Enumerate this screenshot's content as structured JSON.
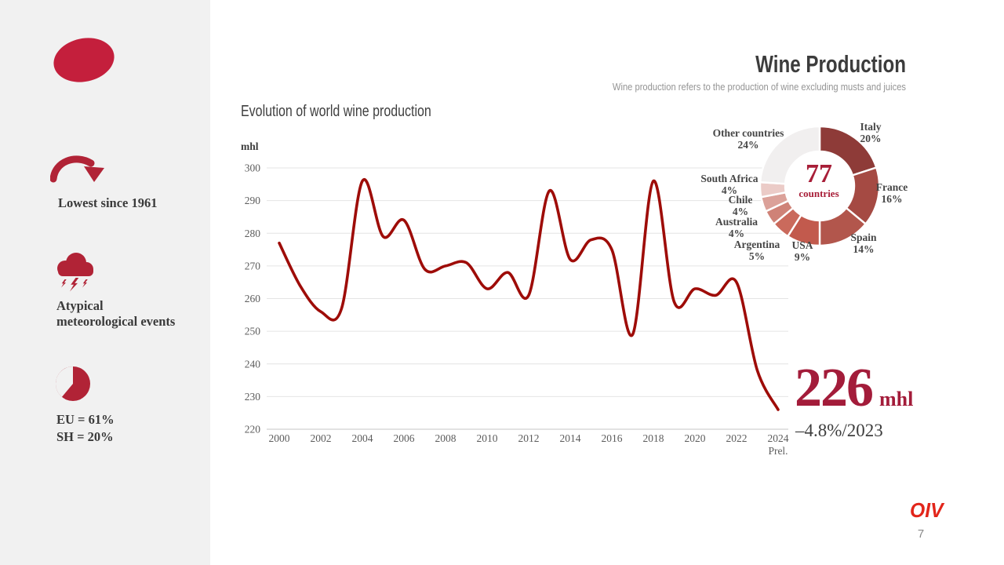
{
  "header": {
    "title": "Wine Production",
    "subtitle": "Wine production refers to the production of wine excluding musts and juices"
  },
  "sidebar": {
    "items": [
      {
        "icon": "curved-down-arrow-icon",
        "lines": [
          "Lowest since 1961"
        ]
      },
      {
        "icon": "storm-cloud-lightning-icon",
        "lines": [
          "Atypical",
          "meteorological events"
        ]
      },
      {
        "icon": "pie-chart-icon",
        "lines": [
          "EU = 61%",
          "SH = 20%"
        ]
      }
    ]
  },
  "chart_data": [
    {
      "type": "line",
      "title": "Evolution of world wine production",
      "ylabel": "mhl",
      "x": [
        2000,
        2001,
        2002,
        2003,
        2004,
        2005,
        2006,
        2007,
        2008,
        2009,
        2010,
        2011,
        2012,
        2013,
        2014,
        2015,
        2016,
        2017,
        2018,
        2019,
        2020,
        2021,
        2022,
        2023,
        2024
      ],
      "values": [
        277,
        264,
        256,
        257,
        296,
        279,
        284,
        269,
        270,
        271,
        263,
        268,
        261,
        293,
        272,
        278,
        275,
        249,
        296,
        259,
        263,
        261,
        265,
        238,
        226
      ],
      "ylim": [
        220,
        300
      ],
      "ytick_step": 10,
      "xtick_interval": 2,
      "last_x_note": "Prel.",
      "line_color": "#9e0c08",
      "grid": true,
      "legend": "none"
    },
    {
      "type": "pie",
      "subtype": "donut",
      "center_value": "77",
      "center_label": "countries",
      "slices": [
        {
          "label": "Italy",
          "pct": 20,
          "color": "#8e3b38"
        },
        {
          "label": "France",
          "pct": 16,
          "color": "#a54a43"
        },
        {
          "label": "Spain",
          "pct": 14,
          "color": "#b2564c"
        },
        {
          "label": "USA",
          "pct": 9,
          "color": "#c25a4d"
        },
        {
          "label": "Argentina",
          "pct": 5,
          "color": "#ca6a5c"
        },
        {
          "label": "Australia",
          "pct": 4,
          "color": "#cf8277"
        },
        {
          "label": "Chile",
          "pct": 4,
          "color": "#dba199"
        },
        {
          "label": "South Africa",
          "pct": 4,
          "color": "#ebcbc7"
        },
        {
          "label": "Other countries",
          "pct": 24,
          "color": "#f1efef"
        }
      ]
    }
  ],
  "callout": {
    "value": "226",
    "unit": "mhl",
    "change": "–4.8%/2023"
  },
  "footer": {
    "brand": "OIV",
    "page_number": "7"
  },
  "colors": {
    "accent_red": "#c41f3c",
    "icon_red": "#b12336",
    "line_red": "#9e0c08",
    "value_red": "#a31c3a",
    "sidebar_bg": "#f1f1f1"
  }
}
